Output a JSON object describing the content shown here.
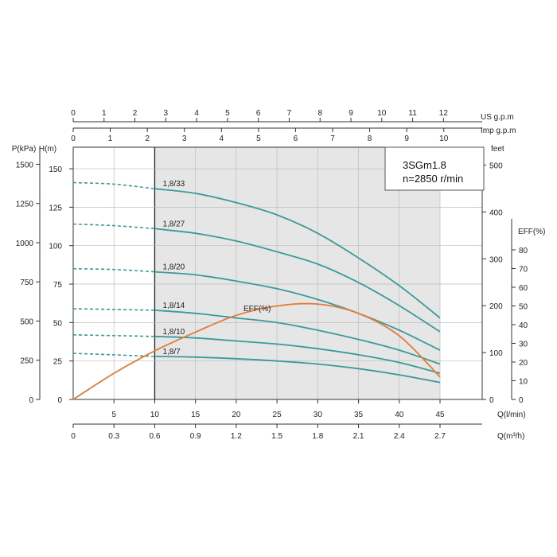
{
  "chart_data": {
    "type": "line",
    "model": {
      "name": "3SGm1.8",
      "speed": "n=2850 r/min"
    },
    "colors": {
      "head_curves": "#3a9b98",
      "efficiency": "#e07b39",
      "operating_zone": "#e6e6e6",
      "grid": "#bdbdbd",
      "axis": "#333333"
    },
    "axes": {
      "q_lmin": {
        "title": "Q(l/min)",
        "range": [
          0,
          45
        ],
        "ticks": [
          "5",
          "10",
          "15",
          "20",
          "25",
          "30",
          "35",
          "40",
          "45"
        ]
      },
      "q_m3h": {
        "title": "Q(m³/h)",
        "ticks": [
          "0",
          "0.3",
          "0.6",
          "0.9",
          "1.2",
          "1.5",
          "1.8",
          "2.1",
          "2.4",
          "2.7"
        ]
      },
      "us_gpm": {
        "title": "US  g.p.m",
        "ticks": [
          "0",
          "1",
          "2",
          "3",
          "4",
          "5",
          "6",
          "7",
          "8",
          "9",
          "10",
          "11",
          "12"
        ]
      },
      "imp_gpm": {
        "title": "Imp  g.p.m",
        "ticks": [
          "0",
          "1",
          "2",
          "3",
          "4",
          "5",
          "6",
          "7",
          "8",
          "9",
          "10"
        ]
      },
      "head_m": {
        "title": "H(m)",
        "range": [
          0,
          150
        ],
        "ticks": [
          "0",
          "25",
          "50",
          "75",
          "100",
          "125",
          "150"
        ]
      },
      "pressure_kpa": {
        "title": "P(kPa)",
        "ticks": [
          "0",
          "250",
          "500",
          "750",
          "1000",
          "1250",
          "1500"
        ]
      },
      "head_feet": {
        "title": "feet",
        "ticks": [
          "0",
          "100",
          "200",
          "300",
          "400",
          "500"
        ]
      },
      "eff_pct": {
        "title": "EFF(%)",
        "range": [
          0,
          80
        ],
        "ticks": [
          "0",
          "10",
          "20",
          "30",
          "40",
          "50",
          "60",
          "70",
          "80"
        ]
      }
    },
    "operating_range_lmin": [
      10,
      45
    ],
    "series": [
      {
        "name": "1,8/33",
        "x": [
          10,
          15,
          20,
          25,
          30,
          35,
          40,
          45
        ],
        "y": [
          137,
          134,
          128,
          120,
          108,
          92,
          74,
          53
        ],
        "dashed_x": [
          0,
          5,
          10
        ],
        "dashed_y": [
          141,
          140,
          137
        ]
      },
      {
        "name": "1,8/27",
        "x": [
          10,
          15,
          20,
          25,
          30,
          35,
          40,
          45
        ],
        "y": [
          111,
          108,
          103,
          96,
          88,
          76,
          61,
          44
        ],
        "dashed_x": [
          0,
          5,
          10
        ],
        "dashed_y": [
          114,
          113,
          111
        ]
      },
      {
        "name": "1,8/20",
        "x": [
          10,
          15,
          20,
          25,
          30,
          35,
          40,
          45
        ],
        "y": [
          83,
          81,
          77,
          72,
          65,
          56,
          45,
          32
        ],
        "dashed_x": [
          0,
          5,
          10
        ],
        "dashed_y": [
          85,
          84.5,
          83
        ]
      },
      {
        "name": "1,8/14",
        "x": [
          10,
          15,
          20,
          25,
          30,
          35,
          40,
          45
        ],
        "y": [
          58,
          56,
          53,
          50,
          45,
          39,
          32,
          23
        ],
        "dashed_x": [
          0,
          5,
          10
        ],
        "dashed_y": [
          59,
          58.5,
          58
        ]
      },
      {
        "name": "1,8/10",
        "x": [
          10,
          15,
          20,
          25,
          30,
          35,
          40,
          45
        ],
        "y": [
          41,
          40,
          38,
          36,
          33,
          29,
          24,
          17
        ],
        "dashed_x": [
          0,
          5,
          10
        ],
        "dashed_y": [
          42,
          41.5,
          41
        ]
      },
      {
        "name": "1,8/7",
        "x": [
          10,
          15,
          20,
          25,
          30,
          35,
          40,
          45
        ],
        "y": [
          28,
          27.5,
          26.5,
          25,
          23,
          20,
          16,
          11
        ],
        "dashed_x": [
          0,
          5,
          10
        ],
        "dashed_y": [
          30,
          29,
          28
        ]
      }
    ],
    "efficiency": {
      "name": "EFF(%)",
      "x": [
        0,
        5,
        10,
        15,
        20,
        25,
        30,
        35,
        40,
        45
      ],
      "y": [
        0,
        14,
        26,
        36,
        45,
        50,
        51,
        46,
        34,
        12
      ]
    }
  }
}
